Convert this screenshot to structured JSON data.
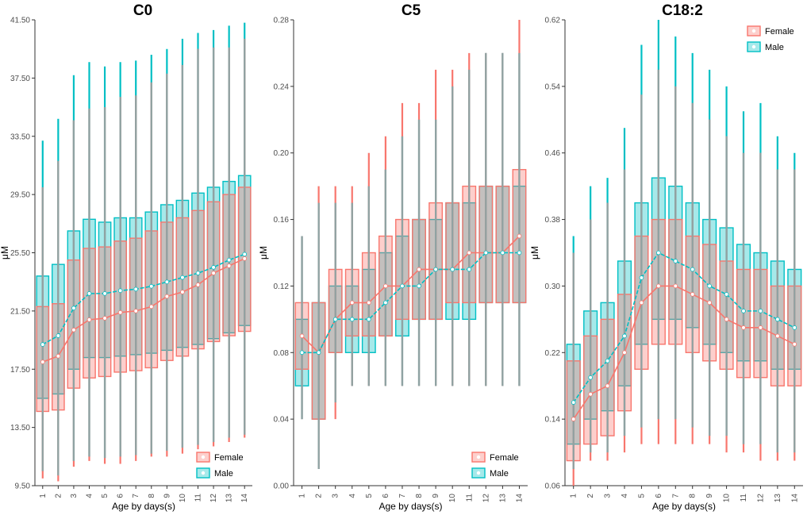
{
  "colors": {
    "female": "#F8766D",
    "male": "#00BFC4",
    "median_overlap": "#8FA3A3",
    "point": "#ffffff"
  },
  "chart_data": [
    {
      "type": "boxplot",
      "title": "C0",
      "xlabel": "Age by days(s)",
      "ylabel": "μM",
      "ylim": [
        9.5,
        41.5
      ],
      "yticks": [
        "9.50",
        "13.50",
        "17.50",
        "21.50",
        "25.50",
        "29.50",
        "33.50",
        "37.50",
        "41.50"
      ],
      "categories": [
        "1",
        "2",
        "3",
        "4",
        "5",
        "6",
        "7",
        "8",
        "9",
        "10",
        "11",
        "12",
        "13",
        "14"
      ],
      "legend": {
        "position": "bottom-right",
        "entries": [
          "Female",
          "Male"
        ]
      },
      "series": [
        {
          "name": "Female",
          "lower": [
            10.0,
            9.8,
            10.8,
            11.2,
            11.0,
            11.0,
            11.2,
            11.5,
            11.5,
            11.7,
            12.0,
            12.2,
            12.5,
            12.8
          ],
          "q1": [
            14.6,
            14.7,
            16.2,
            16.9,
            17.0,
            17.3,
            17.4,
            17.6,
            18.1,
            18.4,
            18.9,
            19.4,
            19.8,
            20.1
          ],
          "q3": [
            21.8,
            22.0,
            25.0,
            25.8,
            25.9,
            26.3,
            26.5,
            27.0,
            27.6,
            27.9,
            28.4,
            29.0,
            29.5,
            30.0
          ],
          "upper": [
            30.0,
            31.8,
            34.6,
            35.4,
            35.5,
            36.2,
            36.3,
            37.2,
            37.8,
            38.4,
            39.5,
            39.6,
            39.6,
            40.2
          ],
          "mean": [
            18.0,
            18.4,
            20.2,
            20.9,
            21.0,
            21.4,
            21.5,
            21.8,
            22.5,
            22.8,
            23.3,
            24.1,
            24.6,
            25.1
          ]
        },
        {
          "name": "Male",
          "lower": [
            10.5,
            10.2,
            11.2,
            11.5,
            11.4,
            11.5,
            11.6,
            11.7,
            11.9,
            12.1,
            12.3,
            12.5,
            12.8,
            13.0
          ],
          "q1": [
            15.5,
            15.8,
            17.5,
            18.3,
            18.3,
            18.4,
            18.5,
            18.6,
            18.8,
            19.0,
            19.2,
            19.6,
            20.0,
            20.5
          ],
          "q3": [
            23.9,
            24.7,
            27.0,
            27.8,
            27.6,
            27.9,
            27.9,
            28.3,
            28.8,
            29.1,
            29.6,
            30.0,
            30.4,
            30.8
          ],
          "upper": [
            33.2,
            34.7,
            37.7,
            38.6,
            38.3,
            38.6,
            38.7,
            39.1,
            39.5,
            40.2,
            40.6,
            40.8,
            41.1,
            41.3
          ],
          "mean": [
            19.2,
            19.8,
            21.7,
            22.7,
            22.7,
            22.9,
            23.0,
            23.2,
            23.5,
            23.8,
            24.1,
            24.5,
            25.0,
            25.4
          ]
        }
      ]
    },
    {
      "type": "boxplot",
      "title": "C5",
      "xlabel": "Age by days(s)",
      "ylabel": "μM",
      "ylim": [
        0.0,
        0.28
      ],
      "yticks": [
        "0.00",
        "0.04",
        "0.08",
        "0.12",
        "0.16",
        "0.20",
        "0.24",
        "0.28"
      ],
      "categories": [
        "1",
        "2",
        "3",
        "4",
        "5",
        "6",
        "7",
        "8",
        "9",
        "10",
        "11",
        "12",
        "13",
        "14"
      ],
      "legend": {
        "position": "bottom-right",
        "entries": [
          "Female",
          "Male"
        ]
      },
      "series": [
        {
          "name": "Female",
          "lower": [
            0.04,
            0.01,
            0.04,
            0.06,
            0.06,
            0.06,
            0.06,
            0.06,
            0.06,
            0.06,
            0.06,
            0.06,
            0.06,
            0.06
          ],
          "q1": [
            0.07,
            0.04,
            0.08,
            0.09,
            0.09,
            0.09,
            0.1,
            0.1,
            0.1,
            0.11,
            0.11,
            0.11,
            0.11,
            0.11
          ],
          "q3": [
            0.11,
            0.11,
            0.13,
            0.13,
            0.14,
            0.15,
            0.16,
            0.16,
            0.17,
            0.17,
            0.18,
            0.18,
            0.18,
            0.19
          ],
          "upper": [
            0.15,
            0.18,
            0.18,
            0.18,
            0.2,
            0.21,
            0.23,
            0.23,
            0.25,
            0.25,
            0.26,
            0.26,
            0.26,
            0.28
          ],
          "mean": [
            0.09,
            0.08,
            0.1,
            0.11,
            0.11,
            0.12,
            0.12,
            0.13,
            0.13,
            0.13,
            0.14,
            0.14,
            0.14,
            0.15
          ]
        },
        {
          "name": "Male",
          "lower": [
            0.04,
            0.01,
            0.05,
            0.06,
            0.06,
            0.06,
            0.06,
            0.06,
            0.06,
            0.06,
            0.06,
            0.06,
            0.06,
            0.06
          ],
          "q1": [
            0.06,
            0.04,
            0.08,
            0.08,
            0.08,
            0.09,
            0.09,
            0.1,
            0.1,
            0.1,
            0.1,
            0.11,
            0.11,
            0.11
          ],
          "q3": [
            0.1,
            0.11,
            0.12,
            0.12,
            0.13,
            0.14,
            0.15,
            0.16,
            0.16,
            0.17,
            0.17,
            0.18,
            0.18,
            0.18
          ],
          "upper": [
            0.15,
            0.17,
            0.17,
            0.17,
            0.18,
            0.19,
            0.21,
            0.22,
            0.22,
            0.24,
            0.25,
            0.26,
            0.26,
            0.26
          ],
          "mean": [
            0.08,
            0.08,
            0.1,
            0.1,
            0.1,
            0.11,
            0.12,
            0.12,
            0.13,
            0.13,
            0.13,
            0.14,
            0.14,
            0.14
          ]
        }
      ]
    },
    {
      "type": "boxplot",
      "title": "C18:2",
      "xlabel": "Age by days(s)",
      "ylabel": "μM",
      "ylim": [
        0.06,
        0.62
      ],
      "yticks": [
        "0.06",
        "0.14",
        "0.22",
        "0.30",
        "0.38",
        "0.46",
        "0.54",
        "0.62"
      ],
      "categories": [
        "1",
        "2",
        "3",
        "4",
        "5",
        "6",
        "7",
        "8",
        "9",
        "10",
        "11",
        "12",
        "13",
        "14"
      ],
      "legend": {
        "position": "top-right",
        "entries": [
          "Female",
          "Male"
        ]
      },
      "series": [
        {
          "name": "Female",
          "lower": [
            0.06,
            0.09,
            0.09,
            0.1,
            0.11,
            0.11,
            0.11,
            0.11,
            0.11,
            0.1,
            0.1,
            0.09,
            0.09,
            0.09
          ],
          "q1": [
            0.09,
            0.11,
            0.12,
            0.15,
            0.2,
            0.23,
            0.23,
            0.22,
            0.21,
            0.2,
            0.19,
            0.19,
            0.18,
            0.18
          ],
          "q3": [
            0.21,
            0.24,
            0.26,
            0.29,
            0.36,
            0.38,
            0.38,
            0.36,
            0.35,
            0.33,
            0.32,
            0.32,
            0.3,
            0.3
          ],
          "upper": [
            0.34,
            0.38,
            0.4,
            0.44,
            0.53,
            0.56,
            0.54,
            0.52,
            0.5,
            0.48,
            0.46,
            0.46,
            0.44,
            0.44
          ],
          "mean": [
            0.14,
            0.17,
            0.18,
            0.22,
            0.28,
            0.3,
            0.3,
            0.29,
            0.28,
            0.26,
            0.25,
            0.25,
            0.24,
            0.23
          ]
        },
        {
          "name": "Male",
          "lower": [
            0.08,
            0.1,
            0.1,
            0.12,
            0.13,
            0.14,
            0.14,
            0.13,
            0.12,
            0.12,
            0.11,
            0.11,
            0.1,
            0.1
          ],
          "q1": [
            0.11,
            0.14,
            0.15,
            0.18,
            0.23,
            0.26,
            0.26,
            0.25,
            0.23,
            0.22,
            0.21,
            0.21,
            0.2,
            0.2
          ],
          "q3": [
            0.23,
            0.27,
            0.28,
            0.33,
            0.4,
            0.43,
            0.42,
            0.4,
            0.38,
            0.37,
            0.35,
            0.34,
            0.33,
            0.32
          ],
          "upper": [
            0.36,
            0.42,
            0.43,
            0.49,
            0.59,
            0.62,
            0.6,
            0.58,
            0.56,
            0.54,
            0.51,
            0.52,
            0.48,
            0.46
          ],
          "mean": [
            0.16,
            0.19,
            0.21,
            0.24,
            0.31,
            0.34,
            0.33,
            0.32,
            0.3,
            0.29,
            0.27,
            0.27,
            0.26,
            0.25
          ]
        }
      ]
    }
  ]
}
